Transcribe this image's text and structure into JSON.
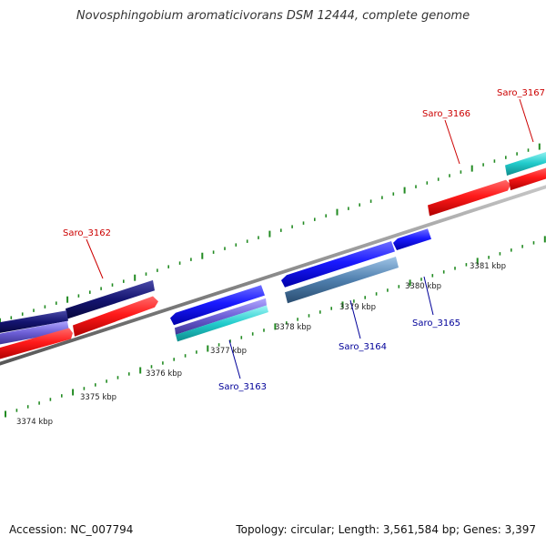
{
  "title": "Novosphingobium aromaticivorans DSM 12444, complete genome",
  "footer": {
    "accession": "Accession: NC_007794",
    "summary": "Topology: circular; Length: 3,561,584 bp; Genes: 3,397"
  },
  "colors": {
    "forward_label": "#cc0000",
    "reverse_label": "#000099",
    "tick": "#228b22",
    "backbone": "#888888"
  },
  "ticks": [
    {
      "label": "3374 kbp"
    },
    {
      "label": "3375 kbp"
    },
    {
      "label": "3376 kbp"
    },
    {
      "label": "3377 kbp"
    },
    {
      "label": "3378 kbp"
    },
    {
      "label": "3379 kbp"
    },
    {
      "label": "3380 kbp"
    },
    {
      "label": "3381 kbp"
    }
  ],
  "gene_labels": [
    {
      "name": "Saro_3162",
      "strand": "forward"
    },
    {
      "name": "Saro_3163",
      "strand": "reverse"
    },
    {
      "name": "Saro_3164",
      "strand": "reverse"
    },
    {
      "name": "Saro_3165",
      "strand": "reverse"
    },
    {
      "name": "Saro_3166",
      "strand": "forward"
    },
    {
      "name": "Saro_3167",
      "strand": "forward"
    }
  ]
}
